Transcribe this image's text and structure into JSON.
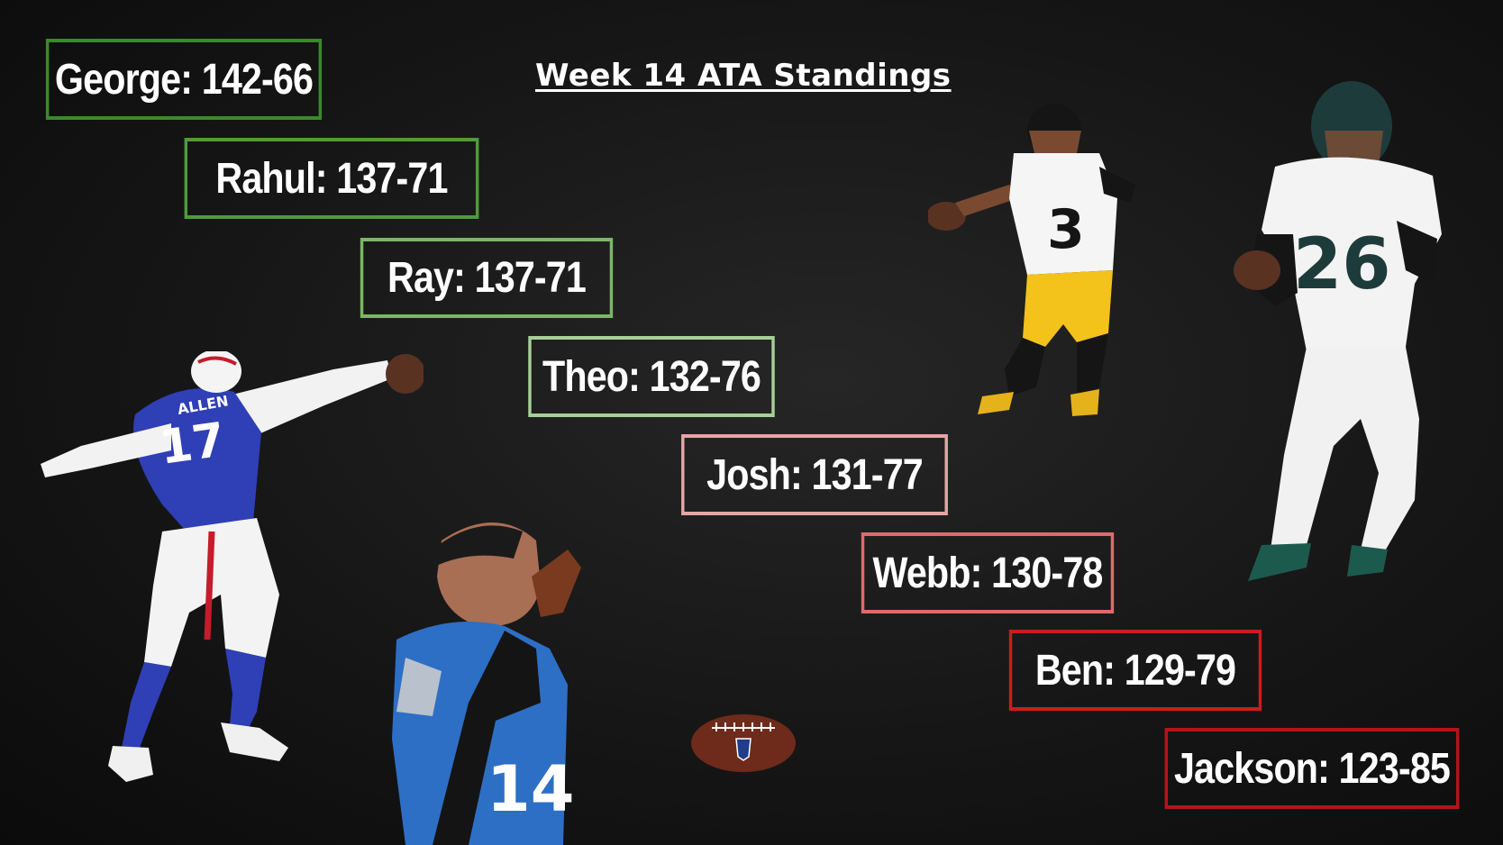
{
  "title": "Week 14 ATA Standings",
  "standings": [
    {
      "label": "George: 142-66",
      "color": "#3b8a2a"
    },
    {
      "label": "Rahul: 137-71",
      "color": "#4f9a3c"
    },
    {
      "label": "Ray: 137-71",
      "color": "#7bb765"
    },
    {
      "label": "Theo: 132-76",
      "color": "#a7cf98"
    },
    {
      "label": "Josh: 131-77",
      "color": "#e8a4a4"
    },
    {
      "label": "Webb: 130-78",
      "color": "#dd6b6b"
    },
    {
      "label": "Ben: 129-79",
      "color": "#c81e1e"
    },
    {
      "label": "Jackson: 123-85",
      "color": "#b4141a"
    }
  ],
  "players": [
    {
      "name": "ALLEN",
      "number": "17",
      "team": "bills"
    },
    {
      "number": "14",
      "team": "lions"
    },
    {
      "number": "3",
      "team": "steelers"
    },
    {
      "number": "26",
      "team": "eagles"
    }
  ]
}
